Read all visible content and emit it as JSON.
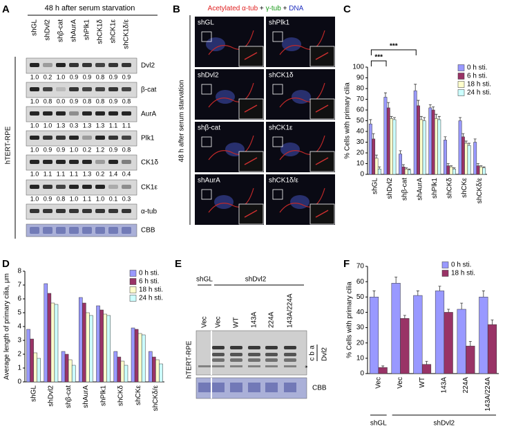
{
  "panel_labels": [
    "A",
    "B",
    "C",
    "D",
    "E",
    "F"
  ],
  "panel_a": {
    "header": "48 h after serum starvation",
    "side_label": "hTERT-RPE",
    "lanes": [
      "shGL",
      "shDvl2",
      "shβ-cat",
      "shAurA",
      "shPlk1",
      "shCK1δ",
      "shCK1ε",
      "shCK1δ/ε"
    ],
    "rows": [
      {
        "name": "Dvl2",
        "quant": [
          "1.0",
          "0.2",
          "1.0",
          "0.9",
          "0.9",
          "0.8",
          "0.9",
          "0.9"
        ]
      },
      {
        "name": "β-cat",
        "quant": [
          "1.0",
          "0.8",
          "0.0",
          "0.9",
          "0.8",
          "0.8",
          "0.9",
          "0.8"
        ]
      },
      {
        "name": "AurA",
        "quant": [
          "1.0",
          "1.0",
          "1.3",
          "0.3",
          "1.3",
          "1.3",
          "1.1",
          "1.1"
        ]
      },
      {
        "name": "Plk1",
        "quant": [
          "1.0",
          "0.9",
          "0.9",
          "1.0",
          "0.2",
          "1.2",
          "0.9",
          "0.8"
        ]
      },
      {
        "name": "CK1δ",
        "quant": [
          "1.0",
          "1.1",
          "1.1",
          "1.1",
          "1.3",
          "0.2",
          "1.4",
          "0.4"
        ]
      },
      {
        "name": "CK1ε",
        "quant": [
          "1.0",
          "0.9",
          "0.8",
          "1.0",
          "1.1",
          "1.0",
          "0.1",
          "0.3"
        ]
      },
      {
        "name": "α-tub"
      },
      {
        "name": "CBB"
      }
    ]
  },
  "panel_b": {
    "title_parts": [
      {
        "text": "Acetylated α-tub",
        "color": "#e02020"
      },
      {
        "text": " + ",
        "color": "#000000"
      },
      {
        "text": "γ-tub",
        "color": "#1a9a1a"
      },
      {
        "text": " + ",
        "color": "#000000"
      },
      {
        "text": "DNA",
        "color": "#2030c0"
      }
    ],
    "side_label": "48 h after serum starvation",
    "tiles": [
      "shGL",
      "shPlk1",
      "shDvl2",
      "shCK1δ",
      "shβ-cat",
      "shCK1ε",
      "shAurA",
      "shCK1δ/ε"
    ]
  },
  "panel_e": {
    "groups": [
      "shGL",
      "shDvl2"
    ],
    "lanes": [
      "Vec",
      "Vec",
      "WT",
      "143A",
      "224A",
      "143A/224A"
    ],
    "side_label": "hTERT-RPE",
    "bands": [
      "a",
      "b",
      "c",
      "*"
    ],
    "protein": "Dvl2",
    "loading": "CBB"
  },
  "chart_data": [
    {
      "type": "bar",
      "ylabel": "% Cells with primary cilia",
      "categories": [
        "shGL",
        "shDvl2",
        "shβ-cat",
        "shAurA",
        "shPlk1",
        "shCKδ",
        "shCKε",
        "shCKδ/ε"
      ],
      "ylim": [
        0,
        100
      ],
      "yticks": [
        0,
        10,
        20,
        30,
        40,
        50,
        60,
        70,
        80,
        90,
        100
      ],
      "annotations": [
        "***",
        "***"
      ],
      "series": [
        {
          "name": "0 h sti.",
          "color": "#9999ff",
          "values": [
            47,
            72,
            19,
            78,
            62,
            32,
            50,
            30
          ],
          "errors": [
            4,
            4,
            3,
            6,
            3,
            3,
            3,
            3
          ]
        },
        {
          "name": "6 h sti.",
          "color": "#993366",
          "values": [
            33,
            62,
            7,
            64,
            60,
            8,
            35,
            8
          ],
          "errors": [
            5,
            5,
            2,
            5,
            3,
            2,
            3,
            2
          ]
        },
        {
          "name": "18 h sti.",
          "color": "#ffffcc",
          "values": [
            15,
            52,
            5,
            51,
            52,
            7,
            29,
            7
          ],
          "errors": [
            3,
            2,
            1,
            3,
            4,
            1,
            2,
            1
          ]
        },
        {
          "name": "24 h sti.",
          "color": "#ccffff",
          "values": [
            5,
            51,
            4,
            50,
            51,
            5,
            27,
            6
          ],
          "errors": [
            2,
            2,
            1,
            3,
            3,
            1,
            2,
            1
          ]
        }
      ]
    },
    {
      "type": "bar",
      "ylabel": "Average length of primary cilia, μm",
      "categories": [
        "shGL",
        "shDvl2",
        "shβ-cat",
        "shAurA",
        "shPlk1",
        "shCKδ",
        "shCKε",
        "shCKδ/ε"
      ],
      "ylim": [
        0,
        8
      ],
      "yticks": [
        0,
        1,
        2,
        3,
        4,
        5,
        6,
        7,
        8
      ],
      "series": [
        {
          "name": "0 h sti.",
          "color": "#9999ff",
          "values": [
            3.8,
            7.1,
            2.2,
            6.1,
            5.5,
            2.2,
            3.9,
            2.2
          ]
        },
        {
          "name": "6 h sti.",
          "color": "#993366",
          "values": [
            3.1,
            6.4,
            2.0,
            5.7,
            5.2,
            1.8,
            3.8,
            1.8
          ]
        },
        {
          "name": "18 h sti.",
          "color": "#ffffcc",
          "values": [
            2.1,
            5.7,
            1.6,
            5.0,
            4.9,
            1.5,
            3.5,
            1.6
          ]
        },
        {
          "name": "24 h sti.",
          "color": "#ccffff",
          "values": [
            1.7,
            5.6,
            1.2,
            4.8,
            4.8,
            1.2,
            3.4,
            1.3
          ]
        }
      ]
    },
    {
      "type": "bar",
      "ylabel": "% Cells with primary cilia",
      "categories": [
        "Vec",
        "Vec",
        "WT",
        "143A",
        "224A",
        "143A/224A"
      ],
      "groups": [
        "shGL",
        "shDvl2"
      ],
      "ylim": [
        0,
        70
      ],
      "yticks": [
        0,
        10,
        20,
        30,
        40,
        50,
        60,
        70
      ],
      "series": [
        {
          "name": "0 h sti.",
          "color": "#9999ff",
          "values": [
            50,
            59,
            51,
            54,
            42,
            50
          ],
          "errors": [
            4,
            4,
            3,
            3,
            4,
            4
          ]
        },
        {
          "name": "18 h sti.",
          "color": "#993366",
          "values": [
            4,
            36,
            6,
            40,
            18,
            32
          ],
          "errors": [
            1,
            2,
            2,
            2,
            3,
            3
          ]
        }
      ]
    }
  ]
}
